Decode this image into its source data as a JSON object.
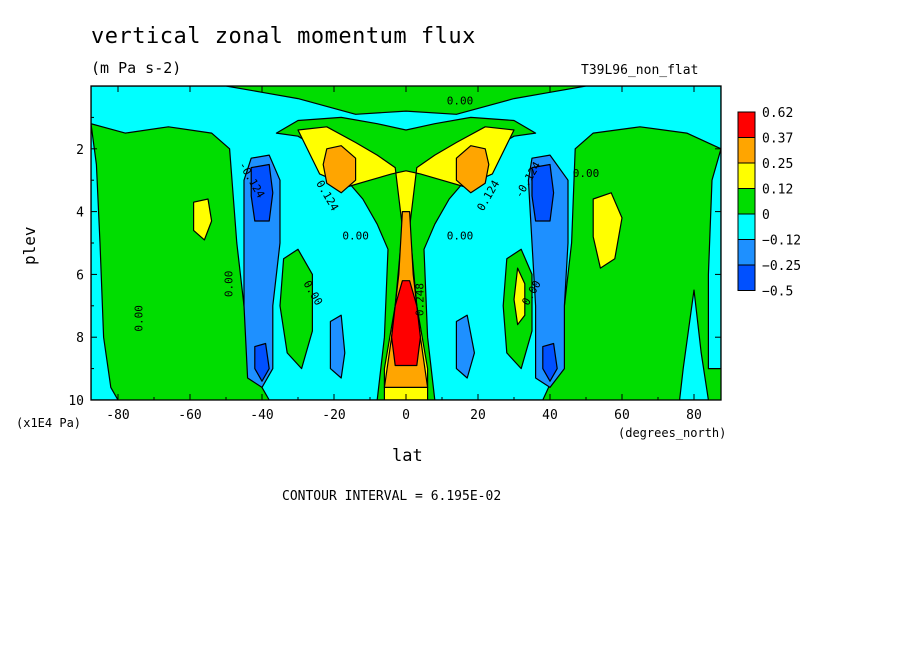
{
  "chart_data": {
    "type": "contour",
    "title": "vertical zonal momentum flux",
    "units": "(m Pa s-2)",
    "run_label": "T39L96_non_flat",
    "xlabel": "lat",
    "xunits": "(degrees_north)",
    "ylabel": "plev",
    "yunits": "(x1E4 Pa)",
    "footer": "CONTOUR INTERVAL = 6.195E-02",
    "xlim": [
      -87.5,
      87.5
    ],
    "ylim": [
      10,
      0
    ],
    "x_ticks": [
      -80,
      -60,
      -40,
      -20,
      0,
      20,
      40,
      60,
      80
    ],
    "y_ticks": [
      2,
      4,
      6,
      8,
      10
    ],
    "colorbar": {
      "labels": [
        "0.62",
        "0.37",
        "0.25",
        "0.12",
        "0",
        "−0.12",
        "−0.25",
        "−0.5"
      ],
      "colors": [
        "#ff0000",
        "#ffa500",
        "#ffff00",
        "#00dd00",
        "#00ffff",
        "#1e90ff",
        "#0050ff"
      ]
    },
    "contour_labels": [
      {
        "text": "0.00",
        "x": 15,
        "y": 0.5
      },
      {
        "text": "-0.124",
        "x": -43,
        "y": 3.0
      },
      {
        "text": "0.124",
        "x": -22,
        "y": 3.5
      },
      {
        "text": "0.00",
        "x": -14,
        "y": 4.8
      },
      {
        "text": "0.00",
        "x": 15,
        "y": 4.8
      },
      {
        "text": "0.124",
        "x": 23,
        "y": 3.5
      },
      {
        "text": "-0.124",
        "x": 34,
        "y": 3.0
      },
      {
        "text": "0.00",
        "x": 50,
        "y": 2.8
      },
      {
        "text": "0.248",
        "x": 4,
        "y": 6.8
      },
      {
        "text": "0.00",
        "x": -74,
        "y": 7.4
      },
      {
        "text": "0.00",
        "x": -49,
        "y": 6.3
      },
      {
        "text": "0.00",
        "x": -26,
        "y": 6.6
      },
      {
        "text": "0.00",
        "x": 35,
        "y": 6.6
      }
    ],
    "regions": [
      {
        "fill": "#00dd00",
        "shape": "rect",
        "x": [
          -87.5,
          87.5
        ],
        "y": [
          0,
          10
        ]
      },
      {
        "fill": "#00ffff",
        "shape": "poly",
        "pts": [
          [
            -87.5,
            0
          ],
          [
            -50,
            0
          ],
          [
            -40,
            0.2
          ],
          [
            -30,
            0.4
          ],
          [
            -14,
            0.9
          ],
          [
            0,
            0.8
          ],
          [
            14,
            0.9
          ],
          [
            30,
            0.4
          ],
          [
            40,
            0.2
          ],
          [
            50,
            0
          ],
          [
            87.5,
            0
          ],
          [
            87.5,
            2.0
          ],
          [
            78,
            1.5
          ],
          [
            65,
            1.3
          ],
          [
            52,
            1.5
          ],
          [
            47,
            2.0
          ],
          [
            46,
            5.0
          ],
          [
            44,
            7.0
          ],
          [
            42,
            9.0
          ],
          [
            38,
            10
          ],
          [
            -38,
            10
          ],
          [
            -43,
            9.0
          ],
          [
            -45,
            7.0
          ],
          [
            -47,
            5.0
          ],
          [
            -49,
            2.0
          ],
          [
            -54,
            1.5
          ],
          [
            -66,
            1.3
          ],
          [
            -78,
            1.5
          ],
          [
            -87.5,
            1.2
          ]
        ]
      },
      {
        "fill": "#00ffff",
        "shape": "poly",
        "pts": [
          [
            -87.5,
            1.2
          ],
          [
            -86,
            2.5
          ],
          [
            -85,
            5.0
          ],
          [
            -84,
            8.0
          ],
          [
            -82,
            9.6
          ],
          [
            -80,
            10
          ],
          [
            -87.5,
            10
          ]
        ]
      },
      {
        "fill": "#00ffff",
        "shape": "poly",
        "pts": [
          [
            80,
            6.5
          ],
          [
            82,
            8.5
          ],
          [
            84,
            10
          ],
          [
            76,
            10
          ],
          [
            77,
            9.0
          ]
        ]
      },
      {
        "fill": "#00ffff",
        "shape": "poly",
        "pts": [
          [
            87.5,
            2.0
          ],
          [
            85,
            3.0
          ],
          [
            84,
            6.0
          ],
          [
            84,
            9.0
          ],
          [
            87.5,
            9.0
          ]
        ]
      },
      {
        "fill": "#00dd00",
        "shape": "poly",
        "pts": [
          [
            -36,
            1.5
          ],
          [
            -30,
            1.6
          ],
          [
            -24,
            2.0
          ],
          [
            -18,
            2.8
          ],
          [
            -12,
            3.6
          ],
          [
            -8,
            4.4
          ],
          [
            -5,
            5.2
          ],
          [
            -6,
            8.0
          ],
          [
            -8,
            10
          ],
          [
            8,
            10
          ],
          [
            6,
            8.0
          ],
          [
            5,
            5.2
          ],
          [
            8,
            4.4
          ],
          [
            12,
            3.6
          ],
          [
            18,
            2.8
          ],
          [
            24,
            2.0
          ],
          [
            30,
            1.6
          ],
          [
            36,
            1.5
          ],
          [
            30,
            1.1
          ],
          [
            18,
            1.0
          ],
          [
            8,
            1.2
          ],
          [
            0,
            1.4
          ],
          [
            -8,
            1.2
          ],
          [
            -18,
            1.0
          ],
          [
            -30,
            1.1
          ]
        ]
      },
      {
        "fill": "#00dd00",
        "shape": "poly",
        "pts": [
          [
            -34,
            5.5
          ],
          [
            -30,
            5.2
          ],
          [
            -26,
            6.0
          ],
          [
            -26,
            7.8
          ],
          [
            -29,
            9.0
          ],
          [
            -33,
            8.5
          ],
          [
            -35,
            7.0
          ]
        ]
      },
      {
        "fill": "#00dd00",
        "shape": "poly",
        "pts": [
          [
            28,
            5.5
          ],
          [
            32,
            5.2
          ],
          [
            35,
            6.0
          ],
          [
            35,
            7.8
          ],
          [
            32,
            9.0
          ],
          [
            28,
            8.5
          ],
          [
            27,
            7.0
          ]
        ]
      },
      {
        "fill": "#ffff00",
        "shape": "poly",
        "pts": [
          [
            -30,
            1.4
          ],
          [
            -22,
            1.3
          ],
          [
            -14,
            1.8
          ],
          [
            -8,
            2.2
          ],
          [
            -3,
            2.6
          ],
          [
            -1,
            4.5
          ],
          [
            -3,
            7.0
          ],
          [
            -6,
            9.0
          ],
          [
            -6,
            10
          ],
          [
            6,
            10
          ],
          [
            6,
            9.0
          ],
          [
            3,
            7.0
          ],
          [
            1,
            4.5
          ],
          [
            3,
            2.6
          ],
          [
            8,
            2.2
          ],
          [
            14,
            1.8
          ],
          [
            22,
            1.3
          ],
          [
            30,
            1.4
          ],
          [
            24,
            2.8
          ],
          [
            16,
            3.2
          ],
          [
            10,
            3.0
          ],
          [
            4,
            2.8
          ],
          [
            0,
            2.7
          ],
          [
            -4,
            2.8
          ],
          [
            -10,
            3.0
          ],
          [
            -16,
            3.2
          ],
          [
            -24,
            2.8
          ]
        ]
      },
      {
        "fill": "#ffff00",
        "shape": "poly",
        "pts": [
          [
            -59,
            3.7
          ],
          [
            -55,
            3.6
          ],
          [
            -54,
            4.3
          ],
          [
            -56,
            4.9
          ],
          [
            -59,
            4.6
          ]
        ]
      },
      {
        "fill": "#ffff00",
        "shape": "poly",
        "pts": [
          [
            52,
            3.6
          ],
          [
            57,
            3.4
          ],
          [
            60,
            4.2
          ],
          [
            58,
            5.5
          ],
          [
            54,
            5.8
          ],
          [
            52,
            4.8
          ]
        ]
      },
      {
        "fill": "#ffff00",
        "shape": "poly",
        "pts": [
          [
            31,
            5.8
          ],
          [
            33,
            6.3
          ],
          [
            33,
            7.3
          ],
          [
            31,
            7.6
          ],
          [
            30,
            6.8
          ]
        ]
      },
      {
        "fill": "#ffa500",
        "shape": "poly",
        "pts": [
          [
            -22,
            2.0
          ],
          [
            -18,
            1.9
          ],
          [
            -14,
            2.3
          ],
          [
            -14,
            3.0
          ],
          [
            -18,
            3.4
          ],
          [
            -22,
            3.1
          ],
          [
            -23,
            2.5
          ]
        ]
      },
      {
        "fill": "#ffa500",
        "shape": "poly",
        "pts": [
          [
            14,
            2.3
          ],
          [
            18,
            1.9
          ],
          [
            22,
            2.0
          ],
          [
            23,
            2.5
          ],
          [
            22,
            3.1
          ],
          [
            18,
            3.4
          ],
          [
            14,
            3.0
          ]
        ]
      },
      {
        "fill": "#ffa500",
        "shape": "poly",
        "pts": [
          [
            -1,
            4.0
          ],
          [
            1,
            4.0
          ],
          [
            2,
            6.0
          ],
          [
            4,
            8.0
          ],
          [
            6,
            9.6
          ],
          [
            -6,
            9.6
          ],
          [
            -4,
            8.0
          ],
          [
            -2,
            6.0
          ]
        ]
      },
      {
        "fill": "#ff0000",
        "shape": "poly",
        "pts": [
          [
            -1,
            6.2
          ],
          [
            1,
            6.2
          ],
          [
            3,
            7.0
          ],
          [
            4,
            8.0
          ],
          [
            3,
            8.9
          ],
          [
            -3,
            8.9
          ],
          [
            -4,
            8.0
          ],
          [
            -3,
            7.0
          ]
        ]
      },
      {
        "fill": "#1e90ff",
        "shape": "poly",
        "pts": [
          [
            -43,
            2.3
          ],
          [
            -38,
            2.2
          ],
          [
            -35,
            3.0
          ],
          [
            -35,
            5.0
          ],
          [
            -37,
            7.0
          ],
          [
            -37,
            9.0
          ],
          [
            -40,
            9.6
          ],
          [
            -44,
            9.3
          ],
          [
            -45,
            7.0
          ],
          [
            -45,
            5.0
          ],
          [
            -45,
            3.0
          ]
        ]
      },
      {
        "fill": "#1e90ff",
        "shape": "poly",
        "pts": [
          [
            35,
            2.3
          ],
          [
            40,
            2.2
          ],
          [
            45,
            3.0
          ],
          [
            45,
            5.0
          ],
          [
            44,
            7.0
          ],
          [
            44,
            9.0
          ],
          [
            40,
            9.6
          ],
          [
            36,
            9.3
          ],
          [
            36,
            7.0
          ],
          [
            35,
            5.0
          ],
          [
            34,
            3.0
          ]
        ]
      },
      {
        "fill": "#1e90ff",
        "shape": "poly",
        "pts": [
          [
            -21,
            7.5
          ],
          [
            -18,
            7.3
          ],
          [
            -17,
            8.5
          ],
          [
            -18,
            9.3
          ],
          [
            -21,
            9.0
          ]
        ]
      },
      {
        "fill": "#1e90ff",
        "shape": "poly",
        "pts": [
          [
            14,
            7.5
          ],
          [
            17,
            7.3
          ],
          [
            19,
            8.5
          ],
          [
            17,
            9.3
          ],
          [
            14,
            9.0
          ]
        ]
      },
      {
        "fill": "#0050ff",
        "shape": "poly",
        "pts": [
          [
            -43,
            2.6
          ],
          [
            -38,
            2.5
          ],
          [
            -37,
            3.4
          ],
          [
            -38,
            4.3
          ],
          [
            -42,
            4.3
          ],
          [
            -43,
            3.5
          ]
        ]
      },
      {
        "fill": "#0050ff",
        "shape": "poly",
        "pts": [
          [
            35,
            2.6
          ],
          [
            40,
            2.5
          ],
          [
            41,
            3.4
          ],
          [
            40,
            4.3
          ],
          [
            36,
            4.3
          ],
          [
            35,
            3.5
          ]
        ]
      },
      {
        "fill": "#0050ff",
        "shape": "poly",
        "pts": [
          [
            -42,
            8.3
          ],
          [
            -39,
            8.2
          ],
          [
            -38,
            9.0
          ],
          [
            -40,
            9.4
          ],
          [
            -42,
            9.0
          ]
        ]
      },
      {
        "fill": "#0050ff",
        "shape": "poly",
        "pts": [
          [
            38,
            8.3
          ],
          [
            41,
            8.2
          ],
          [
            42,
            9.0
          ],
          [
            40,
            9.4
          ],
          [
            38,
            9.0
          ]
        ]
      }
    ]
  }
}
